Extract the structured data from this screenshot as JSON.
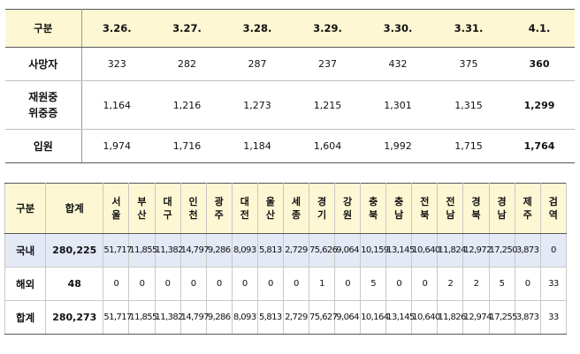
{
  "table1": {
    "corner": "구분",
    "dates": [
      "3.26.",
      "3.27.",
      "3.28.",
      "3.29.",
      "3.30.",
      "3.31.",
      "4.1."
    ],
    "rows": [
      {
        "label": [
          "사망자"
        ],
        "values": [
          "323",
          "282",
          "287",
          "237",
          "432",
          "375",
          "360"
        ]
      },
      {
        "label": [
          "재원중",
          "위중증"
        ],
        "values": [
          "1,164",
          "1,216",
          "1,273",
          "1,215",
          "1,301",
          "1,315",
          "1,299"
        ]
      },
      {
        "label": [
          "입원"
        ],
        "values": [
          "1,974",
          "1,716",
          "1,184",
          "1,604",
          "1,992",
          "1,715",
          "1,764"
        ]
      }
    ]
  },
  "table2": {
    "corner": "구분",
    "total_header": "합계",
    "regions": [
      [
        "서",
        "울"
      ],
      [
        "부",
        "산"
      ],
      [
        "대",
        "구"
      ],
      [
        "인",
        "천"
      ],
      [
        "광",
        "주"
      ],
      [
        "대",
        "전"
      ],
      [
        "울",
        "산"
      ],
      [
        "세",
        "종"
      ],
      [
        "경",
        "기"
      ],
      [
        "강",
        "원"
      ],
      [
        "충",
        "북"
      ],
      [
        "충",
        "남"
      ],
      [
        "전",
        "북"
      ],
      [
        "전",
        "남"
      ],
      [
        "경",
        "북"
      ],
      [
        "경",
        "남"
      ],
      [
        "제",
        "주"
      ],
      [
        "검",
        "역"
      ]
    ],
    "rows": [
      {
        "label": "국내",
        "total": "280,225",
        "values": [
          "51,717",
          "11,855",
          "11,382",
          "14,797",
          "9,286",
          "8,093",
          "5,813",
          "2,729",
          "75,626",
          "9,064",
          "10,159",
          "13,145",
          "10,640",
          "11,824",
          "12,972",
          "17,250",
          "3,873",
          "0"
        ]
      },
      {
        "label": "해외",
        "total": "48",
        "values": [
          "0",
          "0",
          "0",
          "0",
          "0",
          "0",
          "0",
          "0",
          "1",
          "0",
          "5",
          "0",
          "0",
          "2",
          "2",
          "5",
          "0",
          "33"
        ]
      },
      {
        "label": "합계",
        "total": "280,273",
        "values": [
          "51,717",
          "11,855",
          "11,382",
          "14,797",
          "9,286",
          "8,093",
          "5,813",
          "2,729",
          "75,627",
          "9,064",
          "10,164",
          "13,145",
          "10,640",
          "11,826",
          "12,974",
          "17,255",
          "3,873",
          "33"
        ]
      }
    ]
  }
}
